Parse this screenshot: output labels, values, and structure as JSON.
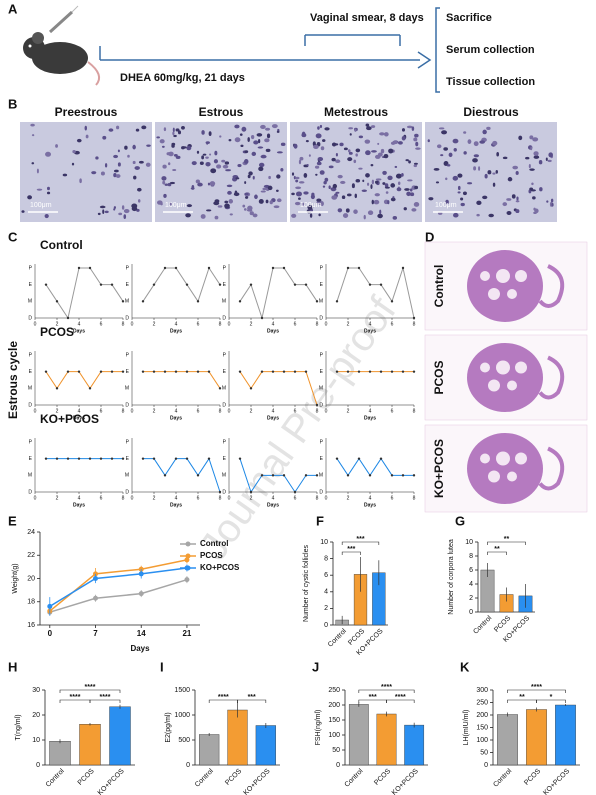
{
  "watermark": "Journal Pre-proof",
  "panel_a": {
    "letter": "A",
    "smear": "Vaginal smear, 8 days",
    "dhea": "DHEA 60mg/kg, 21 days",
    "outcomes": [
      "Sacrifice",
      "Serum collection",
      "Tissue collection"
    ]
  },
  "panel_b": {
    "letter": "B",
    "stages": [
      "Preestrous",
      "Estrous",
      "Metestrous",
      "Diestrous"
    ],
    "scale": "100μm"
  },
  "panel_c": {
    "letter": "C",
    "ylabel": "Estrous cycle",
    "xlabel": "Days",
    "xticks": [
      0,
      2,
      4,
      6,
      8
    ],
    "ylevels": [
      "D",
      "M",
      "E",
      "P"
    ],
    "x": [
      1,
      2,
      3,
      4,
      5,
      6,
      7,
      8
    ],
    "groups": [
      {
        "name": "Control",
        "color": "#9a9a9a",
        "plots": [
          [
            2,
            1,
            0,
            3,
            3,
            2,
            2,
            1
          ],
          [
            1,
            2,
            3,
            3,
            2,
            1,
            3,
            2
          ],
          [
            1,
            2,
            0,
            3,
            3,
            2,
            2,
            1
          ],
          [
            1,
            3,
            3,
            2,
            2,
            1,
            3,
            0
          ]
        ]
      },
      {
        "name": "PCOS",
        "color": "#f0932b",
        "plots": [
          [
            2,
            1,
            2,
            2,
            1,
            2,
            2,
            2
          ],
          [
            2,
            2,
            2,
            2,
            2,
            2,
            2,
            1
          ],
          [
            2,
            1,
            2,
            2,
            2,
            2,
            2,
            0
          ],
          [
            2,
            2,
            2,
            2,
            2,
            2,
            2,
            2
          ]
        ]
      },
      {
        "name": "KO+PCOS",
        "color": "#1e88e5",
        "plots": [
          [
            2,
            2,
            2,
            2,
            2,
            2,
            2,
            2
          ],
          [
            2,
            2,
            1,
            2,
            2,
            1,
            2,
            0
          ],
          [
            2,
            0,
            1,
            1,
            1,
            0,
            1,
            1
          ],
          [
            2,
            1,
            2,
            1,
            2,
            1,
            1,
            1
          ]
        ]
      }
    ]
  },
  "panel_d": {
    "letter": "D",
    "groups": [
      "Control",
      "PCOS",
      "KO+PCOS"
    ]
  },
  "chart_data": [
    {
      "type": "line",
      "label": "E",
      "xlabel": "Days",
      "ylabel": "Weight(g)",
      "x": [
        0,
        7,
        14,
        21
      ],
      "xlim": [
        -1.5,
        23
      ],
      "xticks": [
        0,
        7,
        14,
        21
      ],
      "ylim": [
        16,
        24
      ],
      "yticks": [
        16,
        18,
        20,
        22,
        24
      ],
      "series": [
        {
          "name": "Control",
          "color": "#a6a6a6",
          "values": [
            17.1,
            18.3,
            18.7,
            19.9
          ],
          "errors": [
            0.3,
            0.3,
            0.3,
            0.3
          ]
        },
        {
          "name": "PCOS",
          "color": "#f39c33",
          "values": [
            17.2,
            20.4,
            20.8,
            21.6
          ],
          "errors": [
            0.3,
            0.5,
            0.3,
            0.3
          ]
        },
        {
          "name": "KO+PCOS",
          "color": "#2a8ff0",
          "values": [
            17.6,
            20.0,
            20.4,
            20.9
          ],
          "errors": [
            0.8,
            0.4,
            0.4,
            0.3
          ]
        }
      ]
    },
    {
      "type": "bar",
      "label": "F",
      "ylabel": "Number of cystic follicles",
      "categories": [
        "Control",
        "PCOS",
        "KO+PCOS"
      ],
      "colors": [
        "#a6a6a6",
        "#f39c33",
        "#2a8ff0"
      ],
      "values": [
        0.6,
        6.1,
        6.3
      ],
      "errors": [
        0.5,
        2.1,
        1.5
      ],
      "ylim": [
        0,
        10
      ],
      "yticks": [
        0,
        2,
        4,
        6,
        8,
        10
      ],
      "comparisons": [
        {
          "groups": [
            0,
            2
          ],
          "label": "***"
        },
        {
          "groups": [
            0,
            1
          ],
          "label": "***"
        }
      ]
    },
    {
      "type": "bar",
      "label": "G",
      "ylabel": "Number of corpora lutea",
      "categories": [
        "Control",
        "PCOS",
        "KO+PCOS"
      ],
      "colors": [
        "#a6a6a6",
        "#f39c33",
        "#2a8ff0"
      ],
      "values": [
        6,
        2.5,
        2.3
      ],
      "errors": [
        1,
        1,
        1.7
      ],
      "ylim": [
        0,
        10
      ],
      "yticks": [
        0,
        2,
        4,
        6,
        8,
        10
      ],
      "comparisons": [
        {
          "groups": [
            0,
            2
          ],
          "label": "**"
        },
        {
          "groups": [
            0,
            1
          ],
          "label": "**"
        }
      ]
    },
    {
      "type": "bar",
      "label": "H",
      "ylabel": "T(ng/ml)",
      "categories": [
        "Control",
        "PCOS",
        "KO+PCOS"
      ],
      "colors": [
        "#a6a6a6",
        "#f39c33",
        "#2a8ff0"
      ],
      "values": [
        9.5,
        16.3,
        23.3
      ],
      "errors": [
        0.8,
        0.5,
        0.8
      ],
      "ylim": [
        0,
        30
      ],
      "yticks": [
        0,
        10,
        20,
        30
      ],
      "comparisons": [
        {
          "groups": [
            0,
            2
          ],
          "label": "****"
        },
        {
          "groups": [
            0,
            1
          ],
          "label": "****"
        },
        {
          "groups": [
            1,
            2
          ],
          "label": "****"
        }
      ]
    },
    {
      "type": "bar",
      "label": "I",
      "ylabel": "E2(pg/ml)",
      "categories": [
        "Control",
        "PCOS",
        "KO+PCOS"
      ],
      "colors": [
        "#a6a6a6",
        "#f39c33",
        "#2a8ff0"
      ],
      "values": [
        610,
        1100,
        790
      ],
      "errors": [
        30,
        150,
        50
      ],
      "ylim": [
        0,
        1500
      ],
      "yticks": [
        0,
        500,
        1000,
        1500
      ],
      "comparisons": [
        {
          "groups": [
            0,
            1
          ],
          "label": "****"
        },
        {
          "groups": [
            1,
            2
          ],
          "label": "***"
        }
      ]
    },
    {
      "type": "bar",
      "label": "J",
      "ylabel": "FSH(ng/ml)",
      "categories": [
        "Control",
        "PCOS",
        "KO+PCOS"
      ],
      "colors": [
        "#a6a6a6",
        "#f39c33",
        "#2a8ff0"
      ],
      "values": [
        202,
        170,
        133
      ],
      "errors": [
        8,
        8,
        8
      ],
      "ylim": [
        0,
        250
      ],
      "yticks": [
        0,
        50,
        100,
        150,
        200,
        250
      ],
      "comparisons": [
        {
          "groups": [
            0,
            2
          ],
          "label": "****"
        },
        {
          "groups": [
            0,
            1
          ],
          "label": "***"
        },
        {
          "groups": [
            1,
            2
          ],
          "label": "****"
        }
      ]
    },
    {
      "type": "bar",
      "label": "K",
      "ylabel": "LH(mIU/ml)",
      "categories": [
        "Control",
        "PCOS",
        "KO+PCOS"
      ],
      "colors": [
        "#a6a6a6",
        "#f39c33",
        "#2a8ff0"
      ],
      "values": [
        202,
        222,
        240
      ],
      "errors": [
        8,
        8,
        4
      ],
      "ylim": [
        0,
        300
      ],
      "yticks": [
        0,
        50,
        100,
        150,
        200,
        250,
        300
      ],
      "comparisons": [
        {
          "groups": [
            0,
            2
          ],
          "label": "****"
        },
        {
          "groups": [
            0,
            1
          ],
          "label": "**"
        },
        {
          "groups": [
            1,
            2
          ],
          "label": "*"
        }
      ]
    }
  ]
}
